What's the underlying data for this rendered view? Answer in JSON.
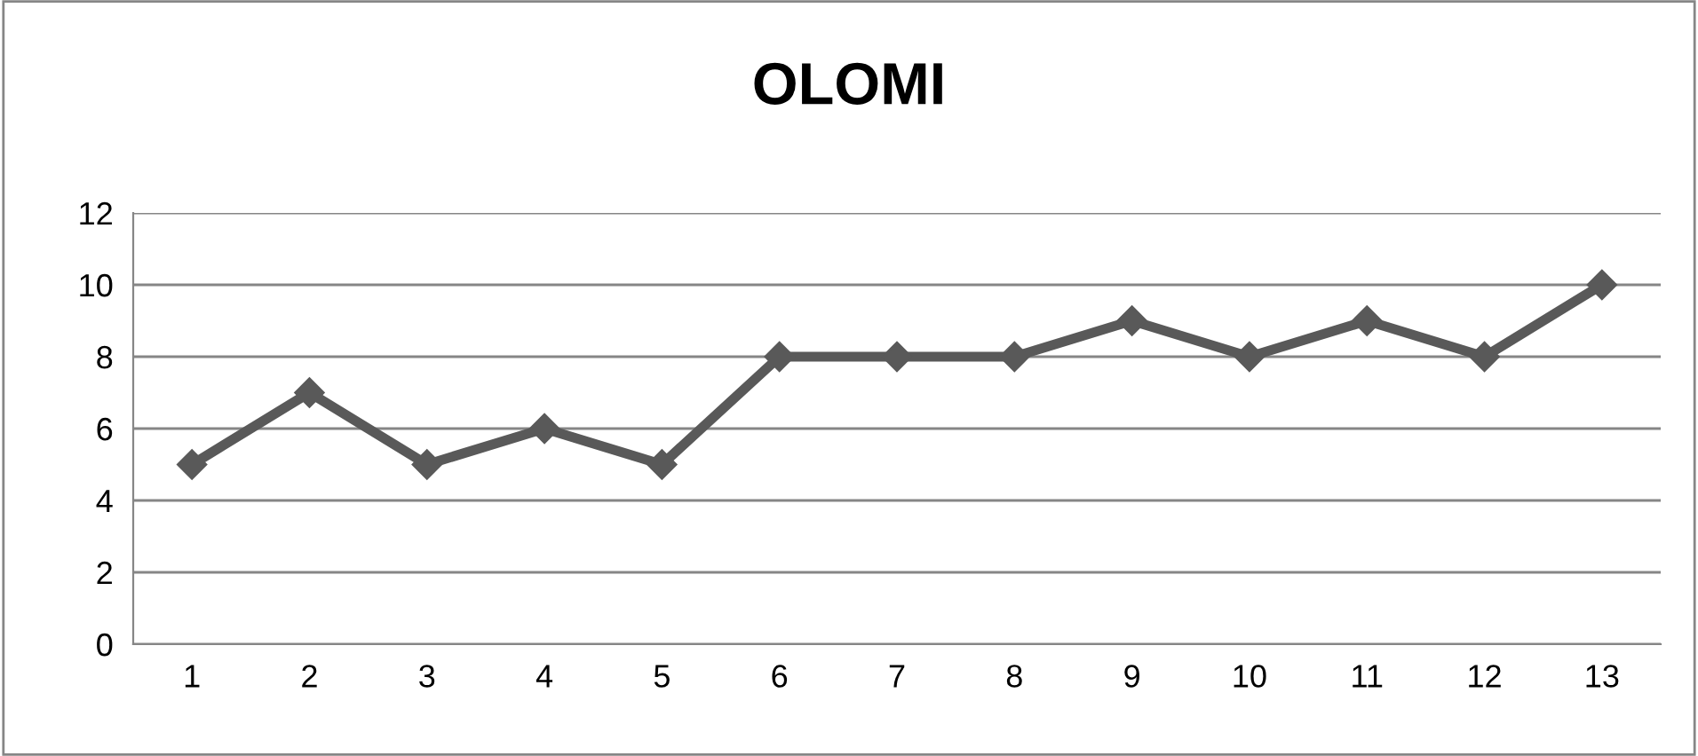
{
  "chart_data": {
    "type": "line",
    "title": "OLOMI",
    "categories": [
      "1",
      "2",
      "3",
      "4",
      "5",
      "6",
      "7",
      "8",
      "9",
      "10",
      "11",
      "12",
      "13"
    ],
    "series": [
      {
        "color": "#595959",
        "values": [
          5,
          7,
          5,
          6,
          5,
          8,
          8,
          8,
          9,
          8,
          9,
          8,
          10
        ]
      }
    ],
    "ylim": [
      0,
      12
    ],
    "yticks": [
      0,
      2,
      4,
      6,
      8,
      10,
      12
    ],
    "grid": "y",
    "marker": "diamond",
    "line_style": "solid"
  }
}
